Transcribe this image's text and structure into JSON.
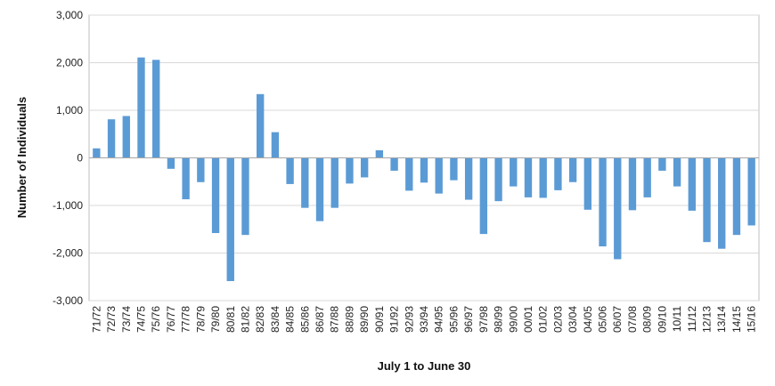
{
  "chart_data": {
    "type": "bar",
    "title": "",
    "xlabel": "July 1 to June 30",
    "ylabel": "Number of Individuals",
    "ylim": [
      -3000,
      3000
    ],
    "yticks": [
      -3000,
      -2000,
      -1000,
      0,
      1000,
      2000,
      3000
    ],
    "ytick_labels": [
      "-3,000",
      "-2,000",
      "-1,000",
      "0",
      "1,000",
      "2,000",
      "3,000"
    ],
    "grid": true,
    "legend": "none",
    "bar_color": "#5b9bd5",
    "categories": [
      "71/72",
      "72/73",
      "73/74",
      "74/75",
      "75/76",
      "76/77",
      "77/78",
      "78/79",
      "79/80",
      "80/81",
      "81/82",
      "82/83",
      "83/84",
      "84/85",
      "85/86",
      "86/87",
      "87/88",
      "88/89",
      "89/90",
      "90/91",
      "91/92",
      "92/93",
      "93/94",
      "94/95",
      "95/96",
      "96/97",
      "97/98",
      "98/99",
      "99/00",
      "00/01",
      "01/02",
      "02/03",
      "03/04",
      "04/05",
      "05/06",
      "06/07",
      "07/08",
      "08/09",
      "09/10",
      "10/11",
      "11/12",
      "12/13",
      "13/14",
      "14/15",
      "15/16"
    ],
    "values": [
      200,
      810,
      880,
      2110,
      2060,
      -230,
      -870,
      -510,
      -1580,
      -2590,
      -1620,
      1340,
      540,
      -550,
      -1050,
      -1330,
      -1050,
      -540,
      -410,
      160,
      -270,
      -690,
      -520,
      -750,
      -470,
      -880,
      -1600,
      -910,
      -600,
      -830,
      -840,
      -680,
      -510,
      -1090,
      -1860,
      -2130,
      -1100,
      -830,
      -270,
      -600,
      -1110,
      -1770,
      -1910,
      -1620,
      -1420
    ]
  }
}
